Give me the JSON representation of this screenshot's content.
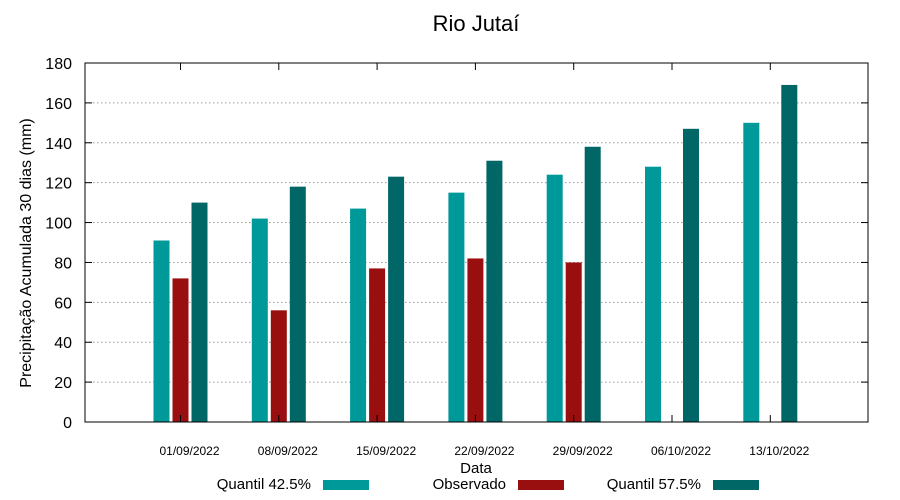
{
  "chart_data": {
    "type": "bar",
    "title": "Rio Jutaí",
    "xlabel": "Data",
    "ylabel": "Precipitação Acumulada 30 dias (mm)",
    "ylim": [
      0,
      180
    ],
    "yticks": [
      0,
      20,
      40,
      60,
      80,
      100,
      120,
      140,
      160,
      180
    ],
    "grid": true,
    "legend_position": "bottom",
    "categories": [
      "01/09/2022",
      "08/09/2022",
      "15/09/2022",
      "22/09/2022",
      "29/09/2022",
      "06/10/2022",
      "13/10/2022"
    ],
    "series": [
      {
        "name": "Quantil 42.5%",
        "color": "#009999",
        "values": [
          91,
          102,
          107,
          115,
          124,
          128,
          150
        ]
      },
      {
        "name": "Observado",
        "color": "#990f0f",
        "values": [
          72,
          56,
          77,
          82,
          80,
          null,
          null
        ]
      },
      {
        "name": "Quantil 57.5%",
        "color": "#006666",
        "values": [
          110,
          118,
          123,
          131,
          138,
          147,
          169
        ]
      }
    ]
  }
}
